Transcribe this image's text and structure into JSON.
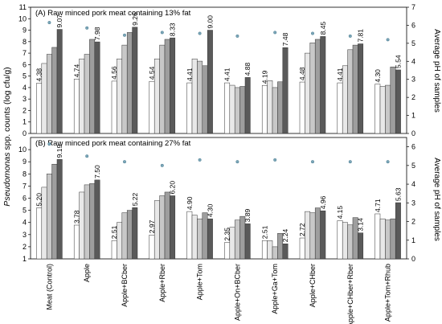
{
  "figure": {
    "categories": [
      "Meat (Control)",
      "Apple",
      "Apple+BCber",
      "Apple+Rber",
      "Apple+Tom",
      "Apple+On+BCber",
      "Apple+Ga+Tom",
      "Apple+CHber",
      "Apple+CHber+Rber",
      "Apple+Tom+Rhub"
    ],
    "y_left_label_italic": "Pseudomonas",
    "y_left_label_rest": " spp. counts (log cfu/g)",
    "y_right_label": "Average pH of samples",
    "bar_fills": [
      "#ffffff",
      "#e8e8e8",
      "#c8c8c8",
      "#9e9e9e",
      "#5a5a5a"
    ],
    "ph_marker_color": "#7aa6b8"
  },
  "chart_data": [
    {
      "type": "bar",
      "title": "(A) Raw minced pork meat containing 13% fat",
      "ylim": [
        0,
        11
      ],
      "yticks": [
        0,
        1,
        2,
        3,
        4,
        5,
        6,
        7,
        8,
        9,
        10,
        11
      ],
      "y2lim": [
        0,
        7
      ],
      "y2ticks": [
        0,
        1,
        2,
        3,
        4,
        5,
        6,
        7
      ],
      "categories": [
        "Meat (Control)",
        "Apple",
        "Apple+BCber",
        "Apple+Rber",
        "Apple+Tom",
        "Apple+On+BCber",
        "Apple+Ga+Tom",
        "Apple+CHber",
        "Apple+CHber+Rber",
        "Apple+Tom+Rhub"
      ],
      "bar_values": [
        [
          4.38,
          6.1,
          6.9,
          7.5,
          9.07
        ],
        [
          4.74,
          6.5,
          6.9,
          8.2,
          7.98
        ],
        [
          4.56,
          6.5,
          7.7,
          8.8,
          9.26
        ],
        [
          4.54,
          6.5,
          7.7,
          8.2,
          8.33
        ],
        [
          4.41,
          6.5,
          6.3,
          5.9,
          9.0
        ],
        [
          4.41,
          4.2,
          4.0,
          4.1,
          4.88
        ],
        [
          4.19,
          4.6,
          4.0,
          4.5,
          7.48
        ],
        [
          4.48,
          7.0,
          7.9,
          8.2,
          8.45
        ],
        [
          4.41,
          5.9,
          7.3,
          7.7,
          7.81
        ],
        [
          4.3,
          4.1,
          4.2,
          5.8,
          5.54
        ]
      ],
      "labeled_values": [
        "4.38",
        "9.07",
        "4.74",
        "7.98",
        "4.56",
        "9.26",
        "4.54",
        "8.33",
        "4.41",
        "9.00",
        "4.41",
        "4.88",
        "4.19",
        "7.48",
        "4.48",
        "8.45",
        "4.41",
        "7.81",
        "4.30",
        "5.54"
      ],
      "ph_values": [
        6.15,
        5.85,
        5.45,
        5.6,
        5.55,
        5.4,
        5.6,
        5.55,
        5.4,
        5.2
      ]
    },
    {
      "type": "bar",
      "title": "(B) Raw minced pork meat containing 27% fat",
      "ylim": [
        1,
        11
      ],
      "yticks": [
        1,
        2,
        3,
        4,
        5,
        6,
        7,
        8,
        9,
        10
      ],
      "y2lim": [
        0,
        6.5
      ],
      "y2ticks": [
        0,
        1,
        2,
        3,
        4,
        5,
        6
      ],
      "categories": [
        "Meat (Control)",
        "Apple",
        "Apple+BCber",
        "Apple+Rber",
        "Apple+Tom",
        "Apple+On+BCber",
        "Apple+Ga+Tom",
        "Apple+CHber",
        "Apple+CHber+Rber",
        "Apple+Tom+Rhub"
      ],
      "bar_values": [
        [
          5.2,
          6.9,
          8.0,
          8.8,
          9.19
        ],
        [
          3.78,
          6.5,
          7.1,
          7.2,
          7.5
        ],
        [
          2.51,
          4.0,
          4.8,
          5.0,
          5.22
        ],
        [
          2.97,
          5.8,
          6.2,
          6.5,
          6.2
        ],
        [
          4.9,
          4.6,
          4.3,
          4.8,
          4.3
        ],
        [
          2.35,
          3.6,
          4.2,
          4.5,
          3.89
        ],
        [
          2.51,
          2.5,
          2.0,
          3.1,
          2.24
        ],
        [
          2.72,
          4.9,
          4.8,
          5.2,
          4.96
        ],
        [
          4.15,
          4.0,
          3.8,
          4.4,
          3.14
        ],
        [
          4.71,
          4.3,
          4.2,
          4.3,
          5.63
        ]
      ],
      "labeled_values": [
        "5.20",
        "9.19",
        "3.78",
        "7.50",
        "2.51",
        "5.22",
        "2.97",
        "6.20",
        "4.90",
        "4.30",
        "2.35",
        "3.89",
        "2.51",
        "2.24",
        "2.72",
        "4.96",
        "4.15",
        "3.14",
        "4.71",
        "5.63"
      ],
      "ph_values": [
        6.15,
        5.5,
        5.2,
        5.0,
        5.3,
        5.2,
        5.3,
        5.2,
        5.2,
        5.2
      ]
    }
  ]
}
